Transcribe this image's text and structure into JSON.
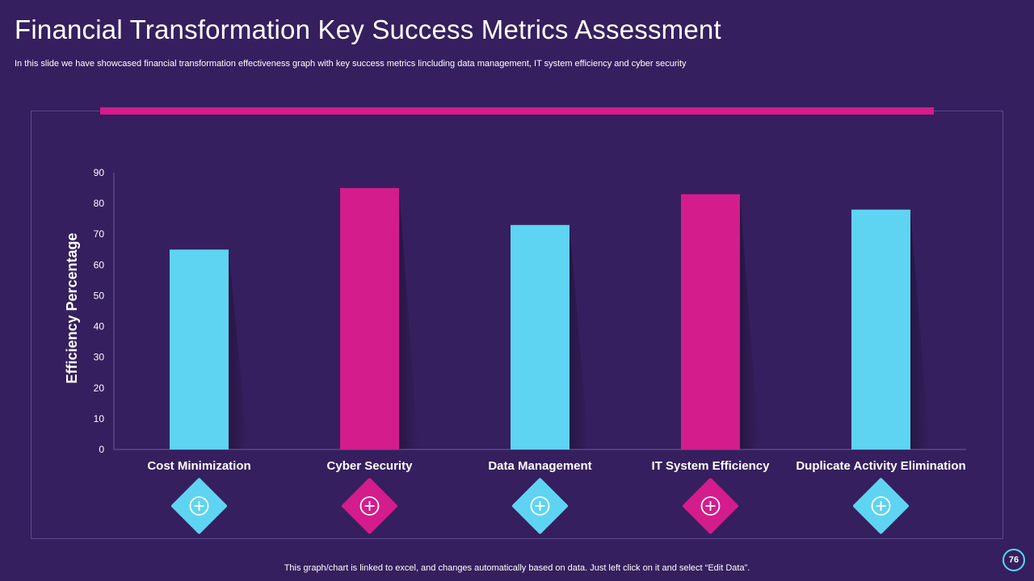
{
  "header": {
    "title": "Financial Transformation Key Success Metrics Assessment",
    "subtitle": "In this slide we have showcased financial transformation effectiveness graph  with  key success metrics lincluding data management, IT system efficiency and cyber security"
  },
  "footer": {
    "note": "This graph/chart is linked to excel,  and changes automatically based on data. Just left click on it and select “Edit Data”.",
    "page_number": "76"
  },
  "colors": {
    "background": "#361f5e",
    "cyan": "#5ed4f2",
    "magenta": "#d41c8c"
  },
  "chart_data": {
    "type": "bar",
    "categories": [
      "Cost Minimization",
      "Cyber Security",
      "Data Management",
      "IT System Efficiency",
      "Duplicate Activity Elimination"
    ],
    "values": [
      65,
      85,
      73,
      83,
      78
    ],
    "bar_colors": [
      "#5ed4f2",
      "#d41c8c",
      "#5ed4f2",
      "#d41c8c",
      "#5ed4f2"
    ],
    "icons": [
      "tools-icon",
      "globe-gear-icon",
      "database-gear-icon",
      "robot-network-icon",
      "gear-cycle-icon"
    ],
    "ylabel": "Efficiency Percentage",
    "ylim": [
      0,
      90
    ],
    "yticks": [
      0,
      10,
      20,
      30,
      40,
      50,
      60,
      70,
      80,
      90
    ],
    "grid": false,
    "legend": "none"
  }
}
